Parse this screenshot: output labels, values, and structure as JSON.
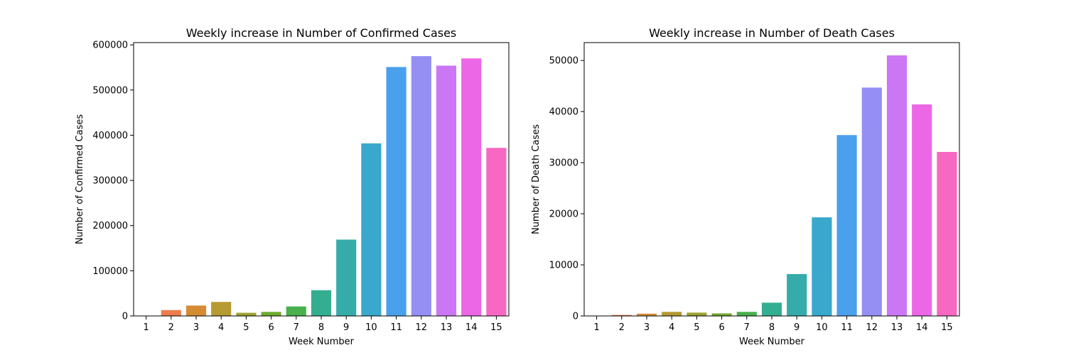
{
  "chart_data": [
    {
      "type": "bar",
      "title": "Weekly increase in Number of Confirmed Cases",
      "xlabel": "Week Number",
      "ylabel": "Number of Confirmed Cases",
      "categories": [
        "1",
        "2",
        "3",
        "4",
        "5",
        "6",
        "7",
        "8",
        "9",
        "10",
        "11",
        "12",
        "13",
        "14",
        "15"
      ],
      "values": [
        500,
        13000,
        23000,
        31000,
        7000,
        9000,
        21000,
        57000,
        169000,
        382000,
        551000,
        575000,
        554000,
        570000,
        372000
      ],
      "ylim": [
        0,
        605000
      ],
      "yticks": [
        0,
        100000,
        200000,
        300000,
        400000,
        500000,
        600000
      ],
      "ytick_labels": [
        "0",
        "100000",
        "200000",
        "300000",
        "400000",
        "500000",
        "600000"
      ],
      "grid": false,
      "legend": "none"
    },
    {
      "type": "bar",
      "title": "Weekly increase in Number of Death Cases",
      "xlabel": "Week Number",
      "ylabel": "Number of Death Cases",
      "categories": [
        "1",
        "2",
        "3",
        "4",
        "5",
        "6",
        "7",
        "8",
        "9",
        "10",
        "11",
        "12",
        "13",
        "14",
        "15"
      ],
      "values": [
        0,
        200,
        450,
        800,
        650,
        500,
        800,
        2600,
        8200,
        19300,
        35400,
        44700,
        51000,
        41400,
        32100
      ],
      "ylim": [
        0,
        53500
      ],
      "yticks": [
        0,
        10000,
        20000,
        30000,
        40000,
        50000
      ],
      "ytick_labels": [
        "0",
        "10000",
        "20000",
        "30000",
        "40000",
        "50000"
      ],
      "grid": false,
      "legend": "none"
    }
  ],
  "colors": [
    "#f77189",
    "#e98232",
    "#bb9832",
    "#97a431",
    "#50b131",
    "#34ae91",
    "#37abb4",
    "#3ba3ec",
    "#a48cf4",
    "#e866f4",
    "#f668c2"
  ]
}
